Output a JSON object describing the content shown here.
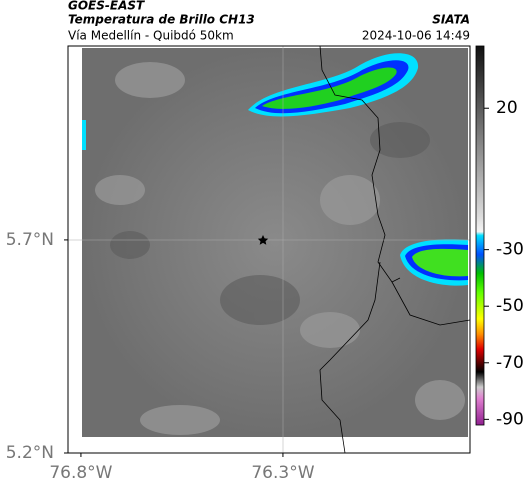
{
  "header": {
    "source": "GOES-EAST",
    "title": "Temperatura de Brillo CH13",
    "subtitle": "Vía Medellín - Quibdó 50km",
    "agency": "SIATA",
    "datetime": "2024-10-06 14:49"
  },
  "map": {
    "lonlim": [
      -76.832,
      -75.837
    ],
    "latlim": [
      5.2,
      6.155
    ],
    "xticks": [
      {
        "value": -76.8,
        "label": "76.8°W"
      },
      {
        "value": -76.3,
        "label": "76.3°W"
      }
    ],
    "yticks": [
      {
        "value": 5.7,
        "label": "5.7°N"
      },
      {
        "value": 5.2,
        "label": "5.2°N"
      }
    ]
  },
  "colorbar": {
    "lim": [
      -92,
      42
    ],
    "ticks": [
      20,
      -30,
      -50,
      -70,
      -90
    ]
  }
}
